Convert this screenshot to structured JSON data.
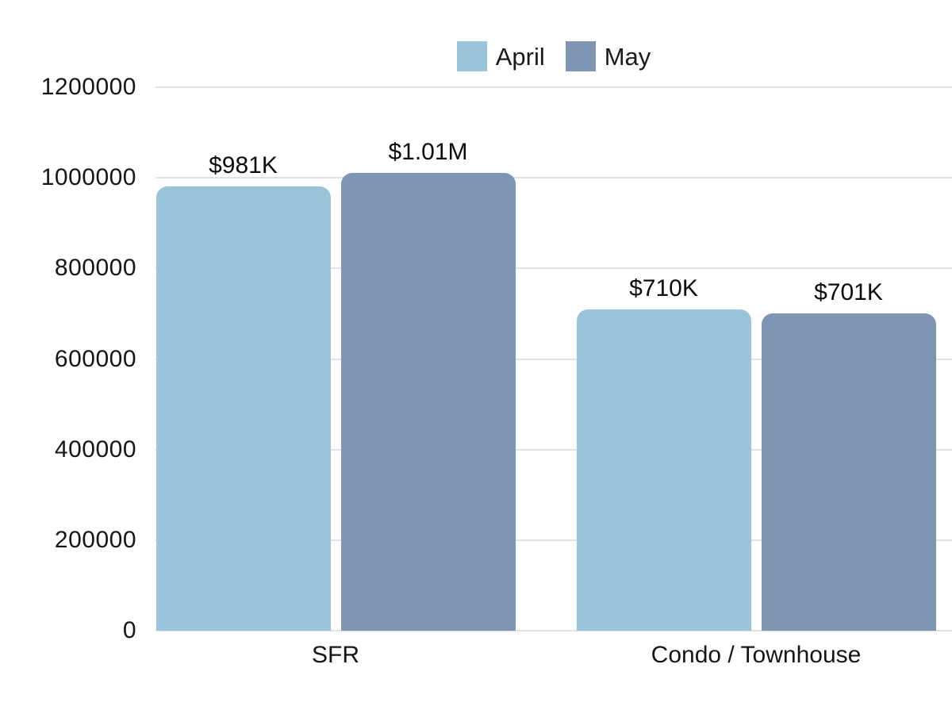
{
  "chart_data": {
    "type": "bar",
    "title": "",
    "categories": [
      "SFR",
      "Condo / Townhouse"
    ],
    "series": [
      {
        "name": "April",
        "color": "#9ac3dc",
        "values": [
          981000,
          710000
        ],
        "data_labels": [
          "$981K",
          "$710K"
        ]
      },
      {
        "name": "May",
        "color": "#7e96b4",
        "values": [
          1010000,
          701000
        ],
        "data_labels": [
          "$1.01M",
          "$701K"
        ]
      }
    ],
    "yticks": [
      0,
      200000,
      400000,
      600000,
      800000,
      1000000,
      1200000
    ],
    "ytick_labels": [
      "0",
      "200000",
      "400000",
      "600000",
      "800000",
      "1000000",
      "1200000"
    ],
    "ylim": [
      0,
      1200000
    ],
    "xlabel": "",
    "ylabel": "",
    "grid": "horizontal",
    "legend_position": "top-center",
    "background_color": "#ffffff",
    "gridline_color": "#e2e2e2",
    "text_color": "#161616"
  }
}
